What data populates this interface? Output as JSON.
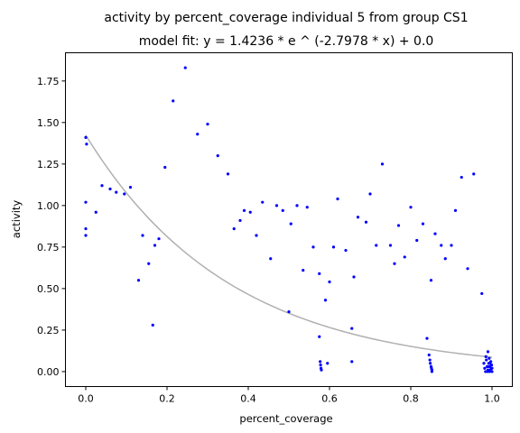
{
  "chart_data": {
    "type": "scatter",
    "title": "activity by percent_coverage individual 5 from group CS1",
    "subtitle": "model fit: y = 1.4236 * e ^ (-2.7978 * x) + 0.0",
    "xlabel": "percent_coverage",
    "ylabel": "activity",
    "xlim": [
      -0.05,
      1.05
    ],
    "ylim": [
      -0.09,
      1.92
    ],
    "x_ticks": [
      0.0,
      0.2,
      0.4,
      0.6,
      0.8,
      1.0
    ],
    "x_tick_labels": [
      "0.0",
      "0.2",
      "0.4",
      "0.6",
      "0.8",
      "1.0"
    ],
    "y_ticks": [
      0.0,
      0.25,
      0.5,
      0.75,
      1.0,
      1.25,
      1.5,
      1.75
    ],
    "y_tick_labels": [
      "0.00",
      "0.25",
      "0.50",
      "0.75",
      "1.00",
      "1.25",
      "1.50",
      "1.75"
    ],
    "grid": false,
    "legend": "none",
    "colors": {
      "points": "#0000ff",
      "fit": "#b0b0b0"
    },
    "fit": {
      "a": 1.4236,
      "b": -2.7978,
      "c": 0.0,
      "x_range": [
        0.0,
        1.0
      ]
    },
    "points": [
      [
        0.0,
        1.41
      ],
      [
        0.002,
        1.37
      ],
      [
        0.0,
        1.02
      ],
      [
        0.0,
        0.86
      ],
      [
        0.0,
        0.82
      ],
      [
        0.025,
        0.96
      ],
      [
        0.04,
        1.12
      ],
      [
        0.06,
        1.1
      ],
      [
        0.075,
        1.08
      ],
      [
        0.095,
        1.07
      ],
      [
        0.11,
        1.11
      ],
      [
        0.13,
        0.55
      ],
      [
        0.14,
        0.82
      ],
      [
        0.155,
        0.65
      ],
      [
        0.165,
        0.28
      ],
      [
        0.17,
        0.76
      ],
      [
        0.18,
        0.8
      ],
      [
        0.195,
        1.23
      ],
      [
        0.215,
        1.63
      ],
      [
        0.245,
        1.83
      ],
      [
        0.275,
        1.43
      ],
      [
        0.3,
        1.49
      ],
      [
        0.325,
        1.3
      ],
      [
        0.35,
        1.19
      ],
      [
        0.365,
        0.86
      ],
      [
        0.38,
        0.91
      ],
      [
        0.39,
        0.97
      ],
      [
        0.405,
        0.96
      ],
      [
        0.42,
        0.82
      ],
      [
        0.435,
        1.02
      ],
      [
        0.455,
        0.68
      ],
      [
        0.47,
        1.0
      ],
      [
        0.485,
        0.97
      ],
      [
        0.5,
        0.36
      ],
      [
        0.505,
        0.89
      ],
      [
        0.52,
        1.0
      ],
      [
        0.535,
        0.61
      ],
      [
        0.545,
        0.99
      ],
      [
        0.56,
        0.75
      ],
      [
        0.575,
        0.59
      ],
      [
        0.575,
        0.21
      ],
      [
        0.577,
        0.06
      ],
      [
        0.578,
        0.04
      ],
      [
        0.579,
        0.02
      ],
      [
        0.58,
        0.01
      ],
      [
        0.59,
        0.43
      ],
      [
        0.595,
        0.05
      ],
      [
        0.6,
        0.54
      ],
      [
        0.61,
        0.75
      ],
      [
        0.62,
        1.04
      ],
      [
        0.64,
        0.73
      ],
      [
        0.655,
        0.26
      ],
      [
        0.655,
        0.06
      ],
      [
        0.66,
        0.57
      ],
      [
        0.67,
        0.93
      ],
      [
        0.69,
        0.9
      ],
      [
        0.7,
        1.07
      ],
      [
        0.715,
        0.76
      ],
      [
        0.73,
        1.25
      ],
      [
        0.75,
        0.76
      ],
      [
        0.76,
        0.65
      ],
      [
        0.77,
        0.88
      ],
      [
        0.785,
        0.69
      ],
      [
        0.8,
        0.99
      ],
      [
        0.815,
        0.79
      ],
      [
        0.83,
        0.89
      ],
      [
        0.84,
        0.2
      ],
      [
        0.845,
        0.1
      ],
      [
        0.847,
        0.07
      ],
      [
        0.848,
        0.05
      ],
      [
        0.85,
        0.03
      ],
      [
        0.851,
        0.02
      ],
      [
        0.852,
        0.01
      ],
      [
        0.852,
        0.0
      ],
      [
        0.85,
        0.55
      ],
      [
        0.86,
        0.83
      ],
      [
        0.875,
        0.76
      ],
      [
        0.885,
        0.68
      ],
      [
        0.9,
        0.76
      ],
      [
        0.91,
        0.97
      ],
      [
        0.925,
        1.17
      ],
      [
        0.94,
        0.62
      ],
      [
        0.955,
        1.19
      ],
      [
        0.975,
        0.47
      ],
      [
        0.98,
        0.05
      ],
      [
        0.982,
        0.02
      ],
      [
        0.984,
        0.0
      ],
      [
        0.986,
        0.07
      ],
      [
        0.988,
        0.03
      ],
      [
        0.99,
        0.12
      ],
      [
        0.99,
        0.01
      ],
      [
        0.992,
        0.05
      ],
      [
        0.993,
        0.08
      ],
      [
        0.994,
        0.0
      ],
      [
        0.995,
        0.03
      ],
      [
        0.996,
        0.01
      ],
      [
        0.997,
        0.06
      ],
      [
        0.998,
        0.02
      ],
      [
        0.999,
        0.04
      ],
      [
        1.0,
        0.0
      ],
      [
        1.0,
        0.02
      ],
      [
        0.985,
        0.09
      ],
      [
        0.995,
        0.05
      ],
      [
        0.989,
        0.0
      ],
      [
        0.991,
        0.03
      ]
    ]
  }
}
